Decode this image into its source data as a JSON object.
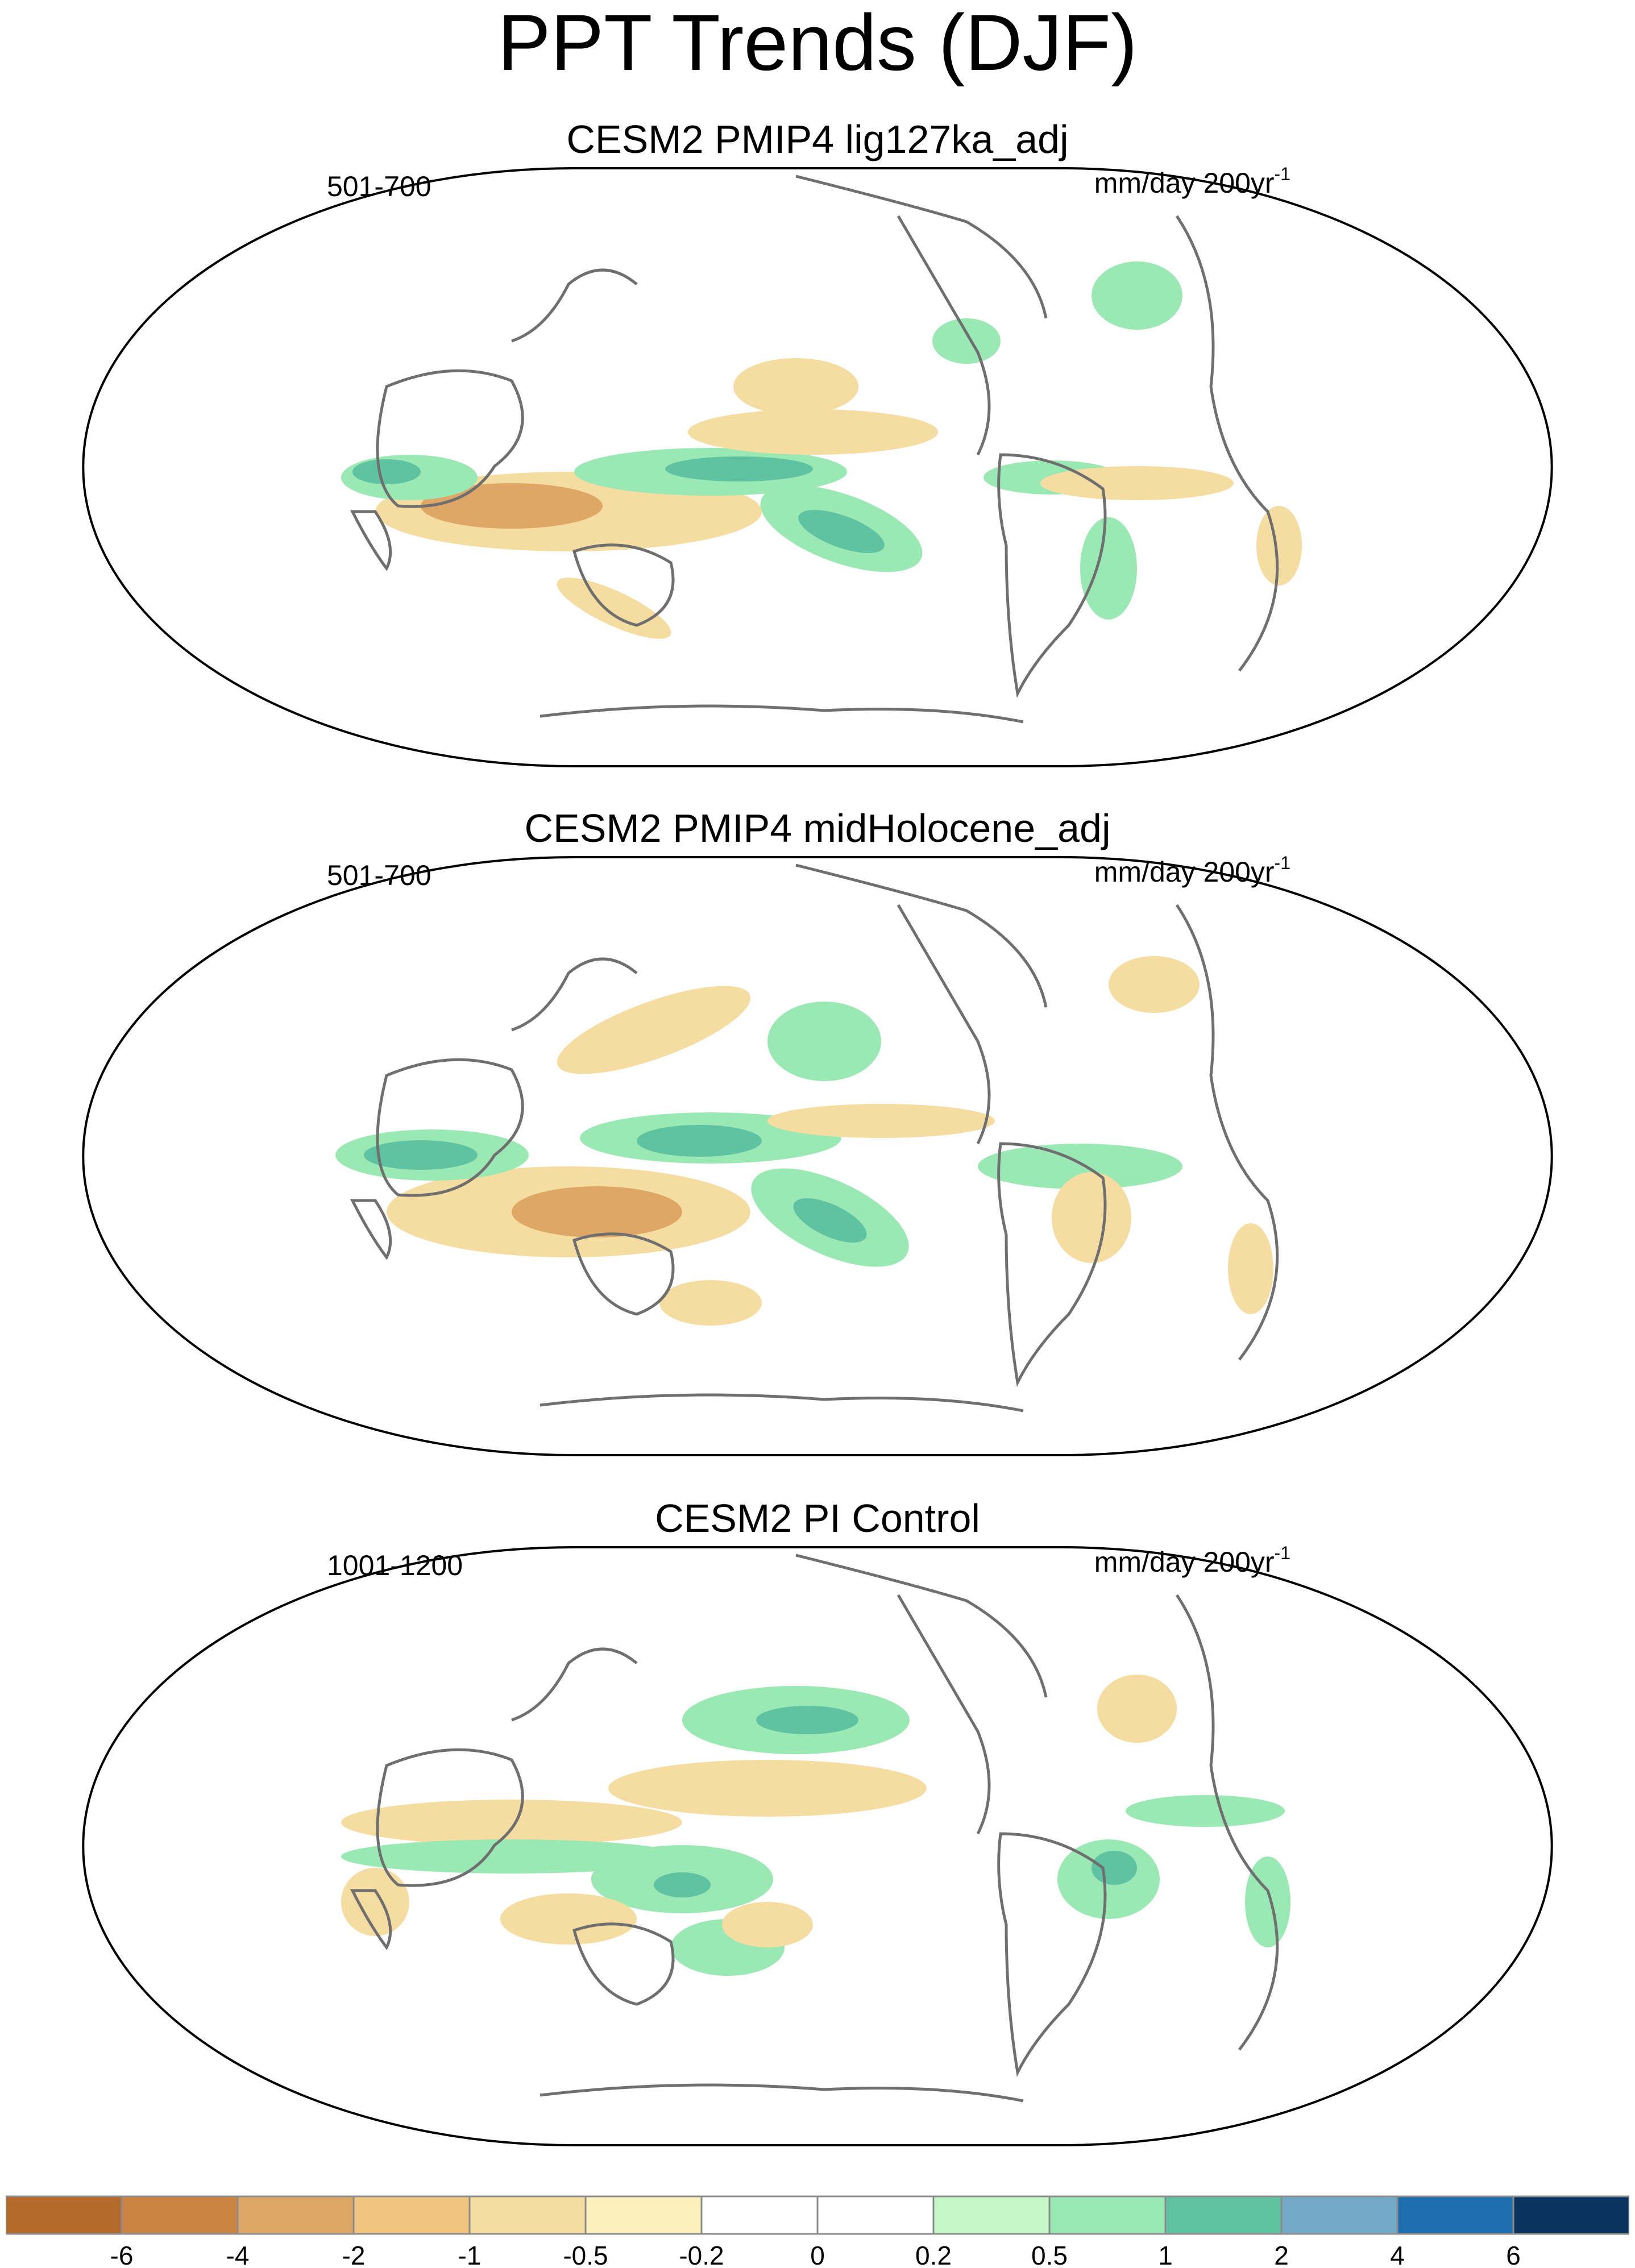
{
  "title": "PPT Trends (DJF)",
  "units": {
    "text": "mm/day 200yr",
    "superscript": "-1"
  },
  "panels": [
    {
      "title": "CESM2 PMIP4 lig127ka_adj",
      "period": "501-700"
    },
    {
      "title": "CESM2 PMIP4 midHolocene_adj",
      "period": "501-700"
    },
    {
      "title": "CESM2 PI Control",
      "period": "1001-1200"
    }
  ],
  "colorbar": {
    "colors": [
      "#b5692a",
      "#cc8442",
      "#dea765",
      "#f0c67f",
      "#f5dca0",
      "#fbf0bb",
      "#ffffff",
      "#ffffff",
      "#c6f7c8",
      "#9ae9b4",
      "#5fc2a1",
      "#73a9c8",
      "#1d6fb0",
      "#08345f"
    ],
    "labels": [
      "-6",
      "-4",
      "-2",
      "-1",
      "-0.5",
      "-0.2",
      "0",
      "0.2",
      "0.5",
      "1",
      "2",
      "4",
      "6"
    ]
  },
  "colors": {
    "coastline": "#6f6f6f",
    "map_outline": "#000000",
    "dry": "#f5dca0",
    "wet": "#9ae9b4",
    "strong_wet": "#5fc2a1",
    "strong_dry": "#dea765"
  }
}
